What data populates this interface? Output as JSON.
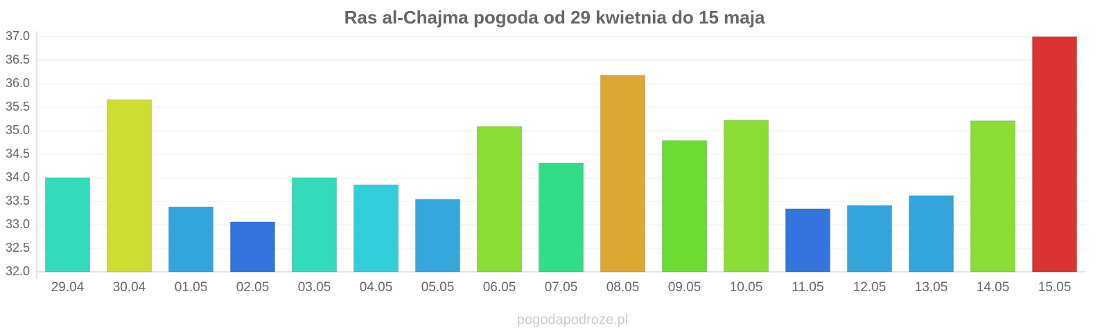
{
  "chart_data": {
    "type": "bar",
    "title": "Ras al-Chajma pogoda od 29 kwietnia do 15 maja",
    "categories": [
      "29.04",
      "30.04",
      "01.05",
      "02.05",
      "03.05",
      "04.05",
      "05.05",
      "06.05",
      "07.05",
      "08.05",
      "09.05",
      "10.05",
      "11.05",
      "12.05",
      "13.05",
      "14.05",
      "15.05"
    ],
    "values": [
      34.0,
      35.66,
      33.38,
      33.06,
      34.0,
      33.85,
      33.54,
      35.09,
      34.31,
      36.18,
      34.79,
      35.22,
      33.34,
      33.41,
      33.62,
      35.21,
      37.0
    ],
    "colors": [
      "#33dbbb",
      "#cfdd33",
      "#34a5dc",
      "#3375dc",
      "#33dbbb",
      "#33cedc",
      "#34a8dc",
      "#8bdc33",
      "#33dc88",
      "#dca833",
      "#6adc33",
      "#8bdc33",
      "#3375dc",
      "#34a5dc",
      "#34a5dc",
      "#8bdc33",
      "#db3333"
    ],
    "ylim": [
      32,
      37
    ],
    "yticks": [
      {
        "value": 32,
        "label": "32.0"
      },
      32.5,
      {
        "value": 33,
        "label": "33.0"
      },
      33.5,
      {
        "value": 34,
        "label": "34.0"
      },
      34.5,
      {
        "value": 35,
        "label": "35.0"
      },
      35.5,
      {
        "value": 36,
        "label": "36.0"
      },
      36.5,
      {
        "value": 37,
        "label": "37.0"
      }
    ],
    "grid": true,
    "source": "pogodapodroze.pl"
  }
}
